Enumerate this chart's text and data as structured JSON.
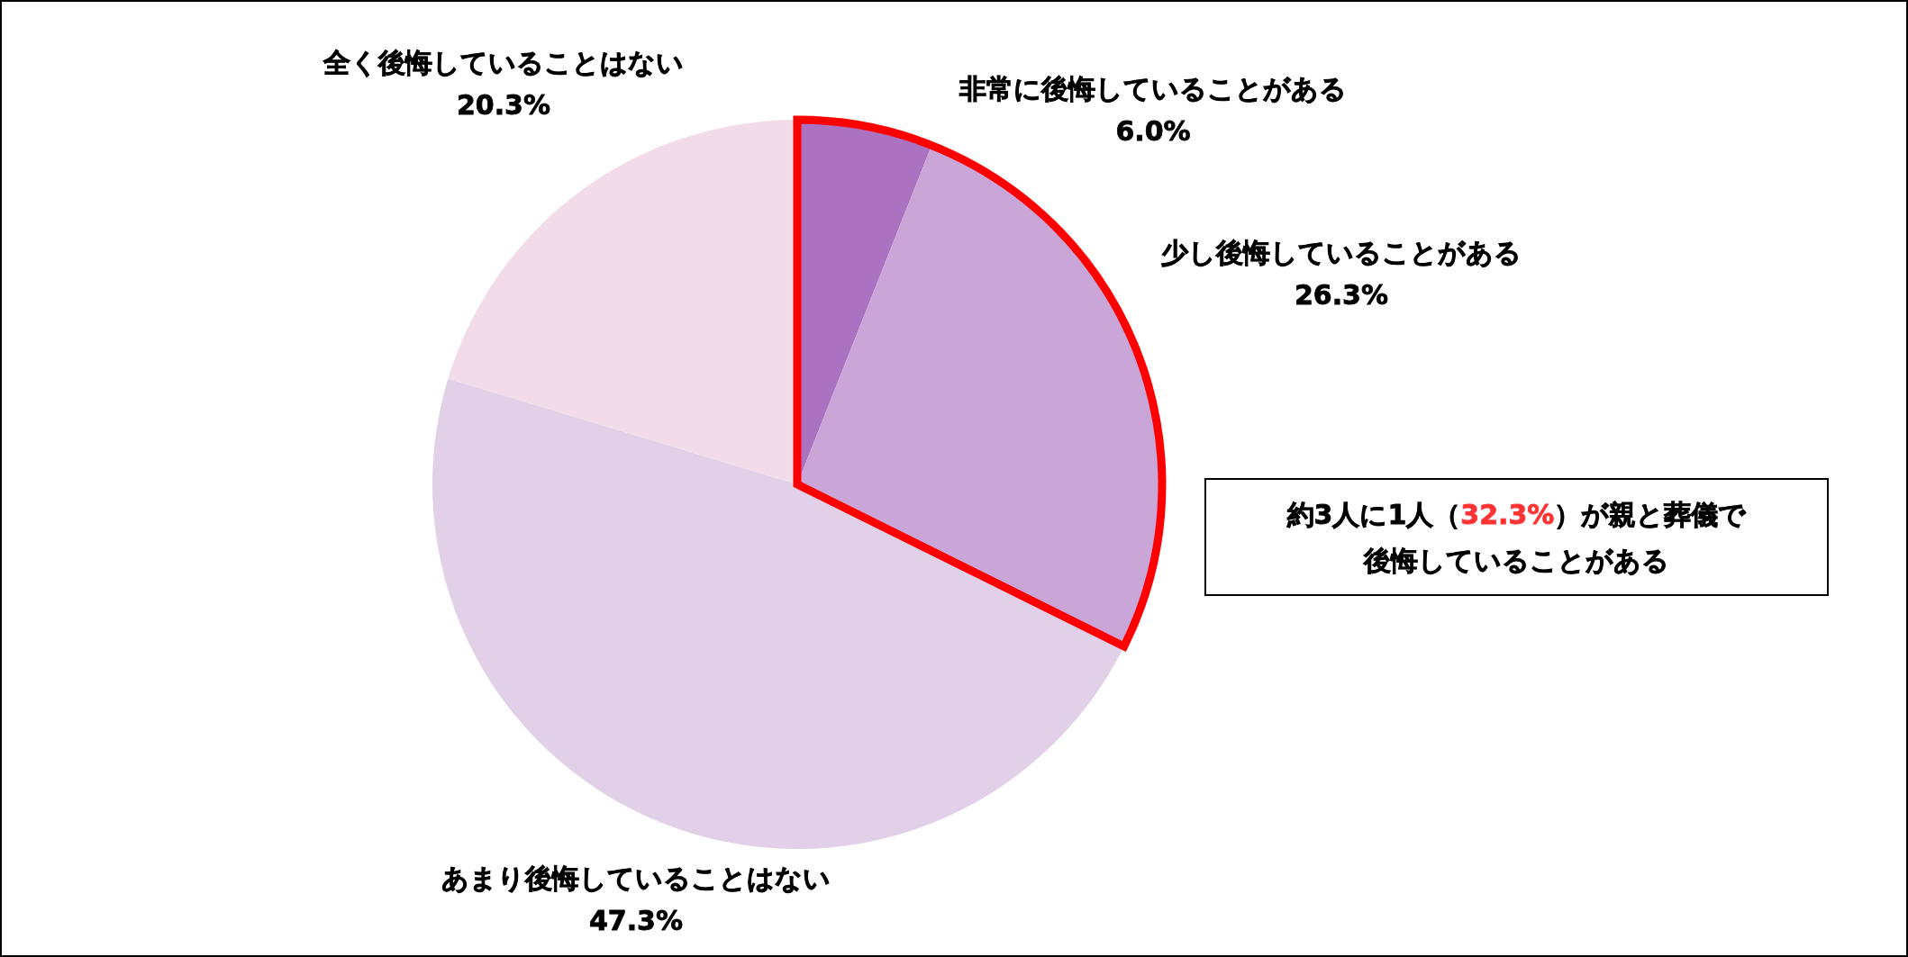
{
  "chart_data": {
    "type": "pie",
    "categories": [
      "非常に後悔していることがある",
      "少し後悔していることがある",
      "あまり後悔していることはない",
      "全く後悔していることはない"
    ],
    "values": [
      6.0,
      26.3,
      47.3,
      20.3
    ],
    "colors": [
      "#ab72c2",
      "#caa5d7",
      "#e2d0e9",
      "#f2dce9"
    ],
    "value_labels": [
      "6.0%",
      "26.3%",
      "47.3%",
      "20.3%"
    ],
    "annotations": [
      "約3人に1人（",
      "32.3%",
      "）が親と葬儀で",
      "後悔していることがある"
    ]
  }
}
